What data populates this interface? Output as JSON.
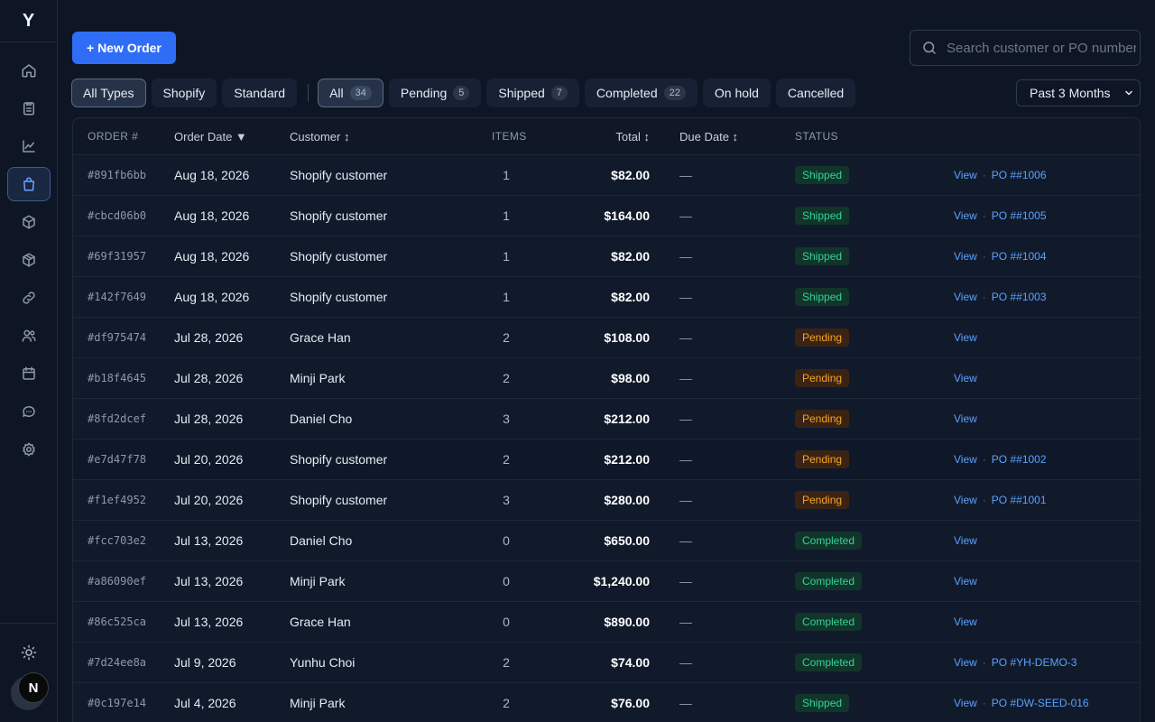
{
  "app": {
    "logo": "Y"
  },
  "sidebar": {
    "items": [
      {
        "name": "home-icon",
        "active": false
      },
      {
        "name": "clipboard-icon",
        "active": false
      },
      {
        "name": "chart-icon",
        "active": false
      },
      {
        "name": "shopping-bag-icon",
        "active": true
      },
      {
        "name": "box-icon",
        "active": false
      },
      {
        "name": "package-icon",
        "active": false
      },
      {
        "name": "link-icon",
        "active": false
      },
      {
        "name": "users-icon",
        "active": false
      },
      {
        "name": "calendar-icon",
        "active": false
      },
      {
        "name": "chat-icon",
        "active": false
      },
      {
        "name": "settings-icon",
        "active": false
      }
    ],
    "avatar_initial": "N"
  },
  "toolbar": {
    "new_order_label": "+ New Order",
    "search_placeholder": "Search customer or PO number"
  },
  "filters": {
    "types": [
      {
        "label": "All Types",
        "active": true
      },
      {
        "label": "Shopify",
        "active": false
      },
      {
        "label": "Standard",
        "active": false
      }
    ],
    "statuses": [
      {
        "label": "All",
        "count": "34",
        "active": true
      },
      {
        "label": "Pending",
        "count": "5",
        "active": false
      },
      {
        "label": "Shipped",
        "count": "7",
        "active": false
      },
      {
        "label": "Completed",
        "count": "22",
        "active": false
      },
      {
        "label": "On hold",
        "count": "",
        "active": false
      },
      {
        "label": "Cancelled",
        "count": "",
        "active": false
      }
    ],
    "date_range": "Past 3 Months"
  },
  "table": {
    "headers": {
      "order": "ORDER #",
      "order_date": "Order Date ▼",
      "customer": "Customer ↕",
      "items": "ITEMS",
      "total": "Total ↕",
      "due_date": "Due Date ↕",
      "status": "STATUS"
    },
    "rows": [
      {
        "order": "#891fb6bb",
        "date": "Aug 18, 2026",
        "customer": "Shopify customer",
        "items": "1",
        "total": "$82.00",
        "due": "—",
        "status": "Shipped",
        "view": "View",
        "po": "PO ##1006"
      },
      {
        "order": "#cbcd06b0",
        "date": "Aug 18, 2026",
        "customer": "Shopify customer",
        "items": "1",
        "total": "$164.00",
        "due": "—",
        "status": "Shipped",
        "view": "View",
        "po": "PO ##1005"
      },
      {
        "order": "#69f31957",
        "date": "Aug 18, 2026",
        "customer": "Shopify customer",
        "items": "1",
        "total": "$82.00",
        "due": "—",
        "status": "Shipped",
        "view": "View",
        "po": "PO ##1004"
      },
      {
        "order": "#142f7649",
        "date": "Aug 18, 2026",
        "customer": "Shopify customer",
        "items": "1",
        "total": "$82.00",
        "due": "—",
        "status": "Shipped",
        "view": "View",
        "po": "PO ##1003"
      },
      {
        "order": "#df975474",
        "date": "Jul 28, 2026",
        "customer": "Grace Han",
        "items": "2",
        "total": "$108.00",
        "due": "—",
        "status": "Pending",
        "view": "View",
        "po": ""
      },
      {
        "order": "#b18f4645",
        "date": "Jul 28, 2026",
        "customer": "Minji Park",
        "items": "2",
        "total": "$98.00",
        "due": "—",
        "status": "Pending",
        "view": "View",
        "po": ""
      },
      {
        "order": "#8fd2dcef",
        "date": "Jul 28, 2026",
        "customer": "Daniel Cho",
        "items": "3",
        "total": "$212.00",
        "due": "—",
        "status": "Pending",
        "view": "View",
        "po": ""
      },
      {
        "order": "#e7d47f78",
        "date": "Jul 20, 2026",
        "customer": "Shopify customer",
        "items": "2",
        "total": "$212.00",
        "due": "—",
        "status": "Pending",
        "view": "View",
        "po": "PO ##1002"
      },
      {
        "order": "#f1ef4952",
        "date": "Jul 20, 2026",
        "customer": "Shopify customer",
        "items": "3",
        "total": "$280.00",
        "due": "—",
        "status": "Pending",
        "view": "View",
        "po": "PO ##1001"
      },
      {
        "order": "#fcc703e2",
        "date": "Jul 13, 2026",
        "customer": "Daniel Cho",
        "items": "0",
        "total": "$650.00",
        "due": "—",
        "status": "Completed",
        "view": "View",
        "po": ""
      },
      {
        "order": "#a86090ef",
        "date": "Jul 13, 2026",
        "customer": "Minji Park",
        "items": "0",
        "total": "$1,240.00",
        "due": "—",
        "status": "Completed",
        "view": "View",
        "po": ""
      },
      {
        "order": "#86c525ca",
        "date": "Jul 13, 2026",
        "customer": "Grace Han",
        "items": "0",
        "total": "$890.00",
        "due": "—",
        "status": "Completed",
        "view": "View",
        "po": ""
      },
      {
        "order": "#7d24ee8a",
        "date": "Jul 9, 2026",
        "customer": "Yunhu Choi",
        "items": "2",
        "total": "$74.00",
        "due": "—",
        "status": "Completed",
        "view": "View",
        "po": "PO #YH-DEMO-3"
      },
      {
        "order": "#0c197e14",
        "date": "Jul 4, 2026",
        "customer": "Minji Park",
        "items": "2",
        "total": "$76.00",
        "due": "—",
        "status": "Shipped",
        "view": "View",
        "po": "PO #DW-SEED-016"
      }
    ]
  },
  "colors": {
    "accent": "#2f6df6",
    "shipped": "#34d399",
    "pending": "#f5a524",
    "link": "#5aa2ff"
  }
}
